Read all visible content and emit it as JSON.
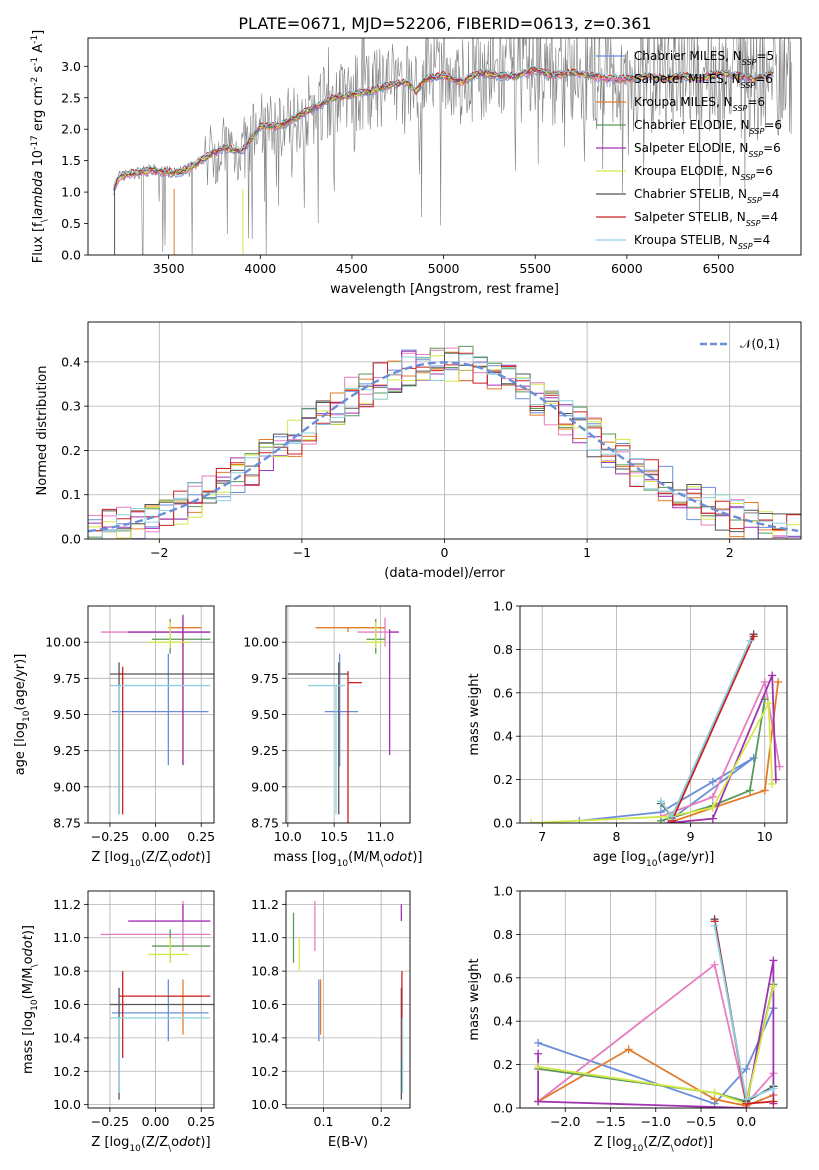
{
  "title": "PLATE=0671, MJD=52206, FIBERID=0613, z=0.361",
  "models": [
    {
      "name": "Chabrier MILES, N$_{SSP}$=5",
      "label": "Chabrier MILES, N",
      "sub": "SSP",
      "tail": "=5",
      "color": "#6a8fd8"
    },
    {
      "name": "Salpeter MILES, N$_{SSP}$=6",
      "label": "Salpeter MILES, N",
      "sub": "SSP",
      "tail": "=6",
      "color": "#e57fc0"
    },
    {
      "name": "Kroupa MILES, N$_{SSP}$=6",
      "label": "Kroupa MILES, N",
      "sub": "SSP",
      "tail": "=6",
      "color": "#e37c2a"
    },
    {
      "name": "Chabrier ELODIE, N$_{SSP}$=6",
      "label": "Chabrier ELODIE, N",
      "sub": "SSP",
      "tail": "=6",
      "color": "#5a9a5a"
    },
    {
      "name": "Salpeter ELODIE, N$_{SSP}$=6",
      "label": "Salpeter ELODIE, N",
      "sub": "SSP",
      "tail": "=6",
      "color": "#a033b0"
    },
    {
      "name": "Kroupa ELODIE, N$_{SSP}$=6",
      "label": "Kroupa ELODIE, N",
      "sub": "SSP",
      "tail": "=6",
      "color": "#d4e84a"
    },
    {
      "name": "Chabrier STELIB, N$_{SSP}$=4",
      "label": "Chabrier STELIB, N",
      "sub": "SSP",
      "tail": "=4",
      "color": "#555555"
    },
    {
      "name": "Salpeter STELIB, N$_{SSP}$=4",
      "label": "Salpeter STELIB, N",
      "sub": "SSP",
      "tail": "=4",
      "color": "#cc2020"
    },
    {
      "name": "Kroupa STELIB, N$_{SSP}$=4",
      "label": "Kroupa STELIB, N",
      "sub": "SSP",
      "tail": "=4",
      "color": "#8fd0e0"
    }
  ],
  "chart_data": [
    {
      "id": "spectrum",
      "type": "line",
      "xlabel": "wavelength [Angstrom, rest frame]",
      "ylabel": "Flux [f$_\\lambda$ 10$^{-17}$ erg cm$^{-2}$ s$^{-1}$ A$^{-1}$]",
      "xlim": [
        3060,
        6950
      ],
      "ylim": [
        0,
        3.45
      ],
      "xticks": [
        3500,
        4000,
        4500,
        5000,
        5500,
        6000,
        6500
      ],
      "yticks": [
        0.0,
        0.5,
        1.0,
        1.5,
        2.0,
        2.5,
        3.0
      ],
      "data_color": "#808080",
      "model_curve_x": [
        3200,
        3230,
        3400,
        3550,
        3650,
        3700,
        3800,
        3900,
        3950,
        4000,
        4100,
        4200,
        4300,
        4400,
        4500,
        4600,
        4700,
        4800,
        4850,
        4900,
        5000,
        5100,
        5200,
        5300,
        5400,
        5500,
        5600,
        5700,
        5800,
        5900,
        6000,
        6100,
        6200,
        6300,
        6400,
        6500,
        6600,
        6700,
        6800
      ],
      "model_curve_y": [
        1.05,
        1.25,
        1.35,
        1.3,
        1.45,
        1.55,
        1.7,
        1.65,
        1.85,
        2.05,
        2.05,
        2.2,
        2.35,
        2.5,
        2.55,
        2.6,
        2.7,
        2.75,
        2.6,
        2.8,
        2.85,
        2.75,
        2.9,
        2.85,
        2.85,
        2.95,
        2.85,
        2.9,
        2.85,
        2.8,
        2.8,
        2.85,
        2.8,
        2.85,
        2.8,
        2.9,
        2.85,
        2.8,
        2.9
      ],
      "grid": false,
      "legend": "upper right"
    },
    {
      "id": "residuals",
      "type": "histogram",
      "xlabel": "(data-model)/error",
      "ylabel": "Normed distribution",
      "xlim": [
        -2.5,
        2.5
      ],
      "ylim": [
        0,
        0.49
      ],
      "xticks": [
        -2,
        -1,
        0,
        1,
        2
      ],
      "yticks": [
        0.0,
        0.1,
        0.2,
        0.3,
        0.4
      ],
      "legend": "$\\mathcal{N}(0,1)$",
      "legend_position": "upper right",
      "grid": true,
      "bin_width": 0.1
    },
    {
      "id": "age_vs_Z",
      "type": "errorbar",
      "xlabel": "Z [log$_{10}$(Z/Z$_\\odot$)]",
      "ylabel": "age  [log$_{10}$(age/yr)]",
      "xlim": [
        -0.37,
        0.32
      ],
      "ylim": [
        8.75,
        10.25
      ],
      "xticks": [
        -0.25,
        0.0,
        0.25
      ],
      "yticks": [
        8.75,
        9.0,
        9.25,
        9.5,
        9.75,
        10.0
      ],
      "xticklabels": [
        "−0.25",
        "0.00",
        "0.25"
      ],
      "yticklabels": [
        "8.75",
        "9.00",
        "9.25",
        "9.50",
        "9.75",
        "10.00"
      ],
      "grid": true,
      "points": [
        {
          "x": 0.07,
          "y": 9.52,
          "xe": [
            0.31,
            0.22
          ],
          "ye": [
            0.37,
            0.4
          ],
          "c": 0
        },
        {
          "x": 0.15,
          "y": 10.07,
          "xe": [
            0.45,
            0.15
          ],
          "ye": [
            0.1,
            0.1
          ],
          "c": 1
        },
        {
          "x": 0.15,
          "y": 10.1,
          "xe": [
            0.08,
            0.1
          ],
          "ye": [
            0.95,
            0.0
          ],
          "c": 2
        },
        {
          "x": 0.08,
          "y": 10.02,
          "xe": [
            0.1,
            0.22
          ],
          "ye": [
            0.1,
            0.14
          ],
          "c": 3
        },
        {
          "x": 0.15,
          "y": 10.07,
          "xe": [
            0.3,
            0.15
          ],
          "ye": [
            0.92,
            0.12
          ],
          "c": 4
        },
        {
          "x": 0.08,
          "y": 10.0,
          "xe": [
            0.12,
            0.1
          ],
          "ye": [
            0.04,
            0.14
          ],
          "c": 5
        },
        {
          "x": -0.2,
          "y": 9.78,
          "xe": [
            0.05,
            0.52
          ],
          "ye": [
            0.97,
            0.08
          ],
          "c": 6
        },
        {
          "x": -0.18,
          "y": 9.78,
          "xe": [
            0.02,
            0.0
          ],
          "ye": [
            0.97,
            0.05
          ],
          "c": 7
        },
        {
          "x": -0.2,
          "y": 9.7,
          "xe": [
            0.05,
            0.5
          ],
          "ye": [
            0.89,
            0.0
          ],
          "c": 8
        }
      ]
    },
    {
      "id": "age_vs_mass",
      "type": "errorbar",
      "xlabel": "mass [log$_{10}$(M/M$_\\odot$)]",
      "ylabel": "",
      "xlim": [
        9.98,
        11.32
      ],
      "ylim": [
        8.75,
        10.25
      ],
      "xticks": [
        10.0,
        10.5,
        11.0
      ],
      "yticks": [
        8.75,
        9.0,
        9.25,
        9.5,
        9.75,
        10.0
      ],
      "xticklabels": [
        "10.0",
        "10.5",
        "11.0"
      ],
      "yticklabels": [
        "8.75",
        "9.00",
        "9.25",
        "9.50",
        "9.75",
        "10.00"
      ],
      "grid": true,
      "points": [
        {
          "x": 10.56,
          "y": 9.52,
          "xe": [
            0.16,
            0.2
          ],
          "ye": [
            0.38,
            0.4
          ],
          "c": 0
        },
        {
          "x": 11.05,
          "y": 10.07,
          "xe": [
            0.3,
            0.15
          ],
          "ye": [
            0.1,
            0.1
          ],
          "c": 1
        },
        {
          "x": 10.65,
          "y": 10.1,
          "xe": [
            0.35,
            0.4
          ],
          "ye": [
            0.03,
            0.0
          ],
          "c": 2
        },
        {
          "x": 10.95,
          "y": 10.02,
          "xe": [
            0.1,
            0.1
          ],
          "ye": [
            0.1,
            0.14
          ],
          "c": 3
        },
        {
          "x": 11.1,
          "y": 10.07,
          "xe": [
            0.0,
            0.1
          ],
          "ye": [
            0.85,
            0.02
          ],
          "c": 4
        },
        {
          "x": 10.95,
          "y": 10.0,
          "xe": [
            0.1,
            0.1
          ],
          "ye": [
            0.04,
            0.14
          ],
          "c": 5
        },
        {
          "x": 10.55,
          "y": 9.78,
          "xe": [
            0.55,
            0.1
          ],
          "ye": [
            0.97,
            0.08
          ],
          "c": 6
        },
        {
          "x": 10.65,
          "y": 9.72,
          "xe": [
            0.0,
            0.15
          ],
          "ye": [
            0.97,
            0.08
          ],
          "c": 7
        },
        {
          "x": 10.52,
          "y": 9.7,
          "xe": [
            0.3,
            0.1
          ],
          "ye": [
            0.89,
            0.0
          ],
          "c": 8
        }
      ]
    },
    {
      "id": "weight_vs_age",
      "type": "line",
      "xlabel": "age  [log$_{10}$(age/yr)]",
      "ylabel": "mass weight",
      "xlim": [
        6.7,
        10.3
      ],
      "ylim": [
        0,
        1.0
      ],
      "xticks": [
        7,
        8,
        9,
        10
      ],
      "yticks": [
        0.0,
        0.2,
        0.4,
        0.6,
        0.8,
        1.0
      ],
      "yticklabels": [
        "0.0",
        "0.2",
        "0.4",
        "0.6",
        "0.8",
        "1.0"
      ],
      "grid": true,
      "series": [
        {
          "c": 0,
          "x": [
            7.5,
            8.6,
            9.3,
            9.85,
            8.75
          ],
          "y": [
            0.01,
            0.05,
            0.19,
            0.3,
            0.02
          ]
        },
        {
          "c": 1,
          "x": [
            8.6,
            9.3,
            10.0,
            10.2
          ],
          "y": [
            0.03,
            0.12,
            0.65,
            0.26
          ]
        },
        {
          "c": 2,
          "x": [
            8.7,
            9.3,
            10.0,
            10.18
          ],
          "y": [
            0.0,
            0.07,
            0.15,
            0.65
          ]
        },
        {
          "c": 3,
          "x": [
            8.6,
            9.3,
            9.8,
            10.0
          ],
          "y": [
            0.01,
            0.08,
            0.15,
            0.57
          ]
        },
        {
          "c": 4,
          "x": [
            8.7,
            9.3,
            10.1,
            10.15
          ],
          "y": [
            0.0,
            0.02,
            0.68,
            0.2
          ]
        },
        {
          "c": 5,
          "x": [
            6.85,
            8.7,
            9.3,
            10.05,
            10.1
          ],
          "y": [
            0.0,
            0.03,
            0.07,
            0.55,
            0.18
          ]
        },
        {
          "c": 6,
          "x": [
            8.6,
            8.75,
            9.85
          ],
          "y": [
            0.09,
            0.03,
            0.87
          ]
        },
        {
          "c": 7,
          "x": [
            8.75,
            9.85
          ],
          "y": [
            0.01,
            0.86
          ]
        },
        {
          "c": 8,
          "x": [
            8.6,
            8.75,
            9.8
          ],
          "y": [
            0.1,
            0.03,
            0.84
          ]
        }
      ]
    },
    {
      "id": "mass_vs_Z",
      "type": "errorbar",
      "xlabel": "Z [log$_{10}$(Z/Z$_\\odot$)]",
      "ylabel": "mass [log$_{10}$(M/M$_\\odot$)]",
      "xlim": [
        -0.37,
        0.32
      ],
      "ylim": [
        9.98,
        11.28
      ],
      "xticks": [
        -0.25,
        0.0,
        0.25
      ],
      "yticks": [
        10.0,
        10.2,
        10.4,
        10.6,
        10.8,
        11.0,
        11.2
      ],
      "xticklabels": [
        "−0.25",
        "0.00",
        "0.25"
      ],
      "yticklabels": [
        "10.0",
        "10.2",
        "10.4",
        "10.6",
        "10.8",
        "11.0",
        "11.2"
      ],
      "grid": true,
      "points": [
        {
          "x": 0.07,
          "y": 10.55,
          "xe": [
            0.31,
            0.22
          ],
          "ye": [
            0.17,
            0.2
          ],
          "c": 0
        },
        {
          "x": 0.15,
          "y": 11.02,
          "xe": [
            0.45,
            0.15
          ],
          "ye": [
            0.1,
            0.2
          ],
          "c": 1
        },
        {
          "x": 0.15,
          "y": 10.65,
          "xe": [
            0.08,
            0.1
          ],
          "ye": [
            0.23,
            0.1
          ],
          "c": 2
        },
        {
          "x": 0.08,
          "y": 10.95,
          "xe": [
            0.1,
            0.22
          ],
          "ye": [
            0.1,
            0.1
          ],
          "c": 3
        },
        {
          "x": 0.15,
          "y": 11.1,
          "xe": [
            0.3,
            0.15
          ],
          "ye": [
            0.0,
            0.1
          ],
          "c": 4
        },
        {
          "x": 0.08,
          "y": 10.9,
          "xe": [
            0.12,
            0.1
          ],
          "ye": [
            0.05,
            0.1
          ],
          "c": 5
        },
        {
          "x": -0.2,
          "y": 10.6,
          "xe": [
            0.05,
            0.52
          ],
          "ye": [
            0.57,
            0.1
          ],
          "c": 6
        },
        {
          "x": -0.18,
          "y": 10.65,
          "xe": [
            0.02,
            0.48
          ],
          "ye": [
            0.37,
            0.15
          ],
          "c": 7
        },
        {
          "x": -0.2,
          "y": 10.52,
          "xe": [
            0.05,
            0.5
          ],
          "ye": [
            0.45,
            0.0
          ],
          "c": 8
        }
      ]
    },
    {
      "id": "mass_vs_ebv",
      "type": "errorbar",
      "xlabel": "E(B-V)",
      "ylabel": "",
      "xlim": [
        0.035,
        0.25
      ],
      "ylim": [
        9.98,
        11.28
      ],
      "xticks": [
        0.1,
        0.2
      ],
      "yticks": [
        10.0,
        10.2,
        10.4,
        10.6,
        10.8,
        11.0,
        11.2
      ],
      "xticklabels": [
        "0.1",
        "0.2"
      ],
      "yticklabels": [
        "10.0",
        "10.2",
        "10.4",
        "10.6",
        "10.8",
        "11.0",
        "11.2"
      ],
      "grid": true,
      "points": [
        {
          "x": 0.092,
          "y": 10.55,
          "xe": [
            0,
            0
          ],
          "ye": [
            0.17,
            0.2
          ],
          "c": 0
        },
        {
          "x": 0.085,
          "y": 11.02,
          "xe": [
            0,
            0
          ],
          "ye": [
            0.1,
            0.2
          ],
          "c": 1
        },
        {
          "x": 0.095,
          "y": 10.65,
          "xe": [
            0,
            0
          ],
          "ye": [
            0.23,
            0.1
          ],
          "c": 2
        },
        {
          "x": 0.048,
          "y": 10.95,
          "xe": [
            0,
            0
          ],
          "ye": [
            0.1,
            0.2
          ],
          "c": 3
        },
        {
          "x": 0.235,
          "y": 11.1,
          "xe": [
            0,
            0
          ],
          "ye": [
            0.0,
            0.1
          ],
          "c": 4
        },
        {
          "x": 0.058,
          "y": 10.9,
          "xe": [
            0,
            0
          ],
          "ye": [
            0.1,
            0.1
          ],
          "c": 5
        },
        {
          "x": 0.235,
          "y": 10.6,
          "xe": [
            0,
            0
          ],
          "ye": [
            0.57,
            0.1
          ],
          "c": 6
        },
        {
          "x": 0.236,
          "y": 10.65,
          "xe": [
            0,
            0
          ],
          "ye": [
            0.37,
            0.15
          ],
          "c": 7
        },
        {
          "x": 0.237,
          "y": 10.52,
          "xe": [
            0,
            0
          ],
          "ye": [
            0.45,
            0.0
          ],
          "c": 8
        }
      ]
    },
    {
      "id": "weight_vs_Z",
      "type": "line",
      "xlabel": "Z [log$_{10}$(Z/Z$_\\odot$)]",
      "ylabel": "mass weight",
      "xlim": [
        -2.5,
        0.45
      ],
      "ylim": [
        0,
        1.0
      ],
      "xticks": [
        -2.0,
        -1.5,
        -1.0,
        -0.5,
        0.0
      ],
      "yticks": [
        0.0,
        0.2,
        0.4,
        0.6,
        0.8,
        1.0
      ],
      "xticklabels": [
        "−2.0",
        "−1.5",
        "−1.0",
        "−0.5",
        "0.0"
      ],
      "yticklabels": [
        "0.0",
        "0.2",
        "0.4",
        "0.6",
        "0.8",
        "1.0"
      ],
      "grid": true,
      "series": [
        {
          "c": 0,
          "x": [
            -2.3,
            -0.35,
            0.0,
            0.3
          ],
          "y": [
            0.3,
            0.02,
            0.18,
            0.46
          ]
        },
        {
          "c": 1,
          "x": [
            -2.3,
            -0.35,
            0.0,
            0.3
          ],
          "y": [
            0.03,
            0.66,
            0.02,
            0.16
          ]
        },
        {
          "c": 2,
          "x": [
            -2.3,
            -1.3,
            -0.35,
            0.0,
            0.3
          ],
          "y": [
            0.03,
            0.27,
            0.04,
            0.01,
            0.06
          ]
        },
        {
          "c": 3,
          "x": [
            -2.3,
            -0.35,
            0.0,
            0.3
          ],
          "y": [
            0.18,
            0.07,
            0.03,
            0.57
          ]
        },
        {
          "c": 4,
          "x": [
            -2.3,
            -2.3,
            0.0,
            0.3,
            0.3
          ],
          "y": [
            0.25,
            0.03,
            0.0,
            0.68,
            0.02
          ]
        },
        {
          "c": 5,
          "x": [
            -2.3,
            -0.35,
            0.0,
            0.3
          ],
          "y": [
            0.19,
            0.07,
            0.02,
            0.56
          ]
        },
        {
          "c": 6,
          "x": [
            -0.35,
            0.0,
            0.3
          ],
          "y": [
            0.87,
            0.03,
            0.1
          ]
        },
        {
          "c": 7,
          "x": [
            -0.35,
            0.0,
            0.3
          ],
          "y": [
            0.86,
            0.02,
            0.03
          ]
        },
        {
          "c": 8,
          "x": [
            -0.35,
            0.0,
            0.3
          ],
          "y": [
            0.84,
            0.04,
            0.09
          ]
        }
      ]
    }
  ]
}
